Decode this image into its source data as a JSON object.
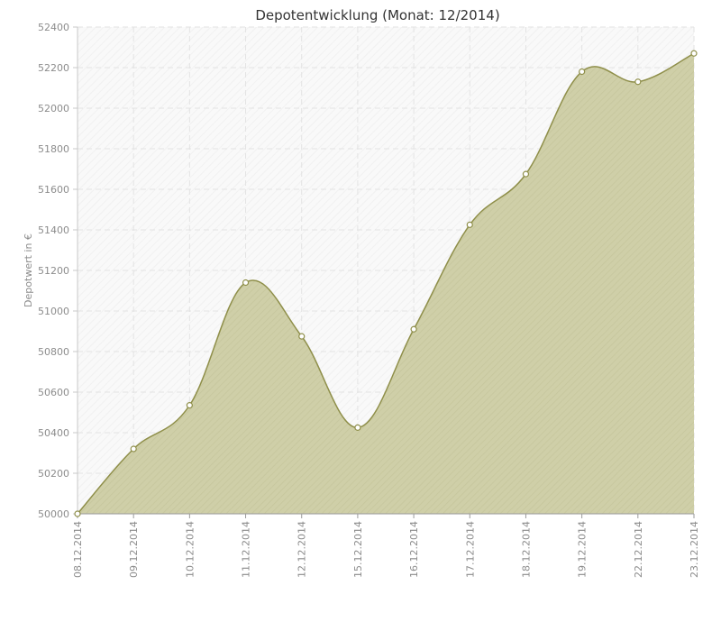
{
  "chart_data": {
    "type": "area",
    "title": "Depotentwicklung (Monat: 12/2014)",
    "xlabel": "",
    "ylabel": "Depotwert in €",
    "categories": [
      "08.12.2014",
      "09.12.2014",
      "10.12.2014",
      "11.12.2014",
      "12.12.2014",
      "15.12.2014",
      "16.12.2014",
      "17.12.2014",
      "18.12.2014",
      "19.12.2014",
      "22.12.2014",
      "23.12.2014"
    ],
    "values": [
      50000,
      50320,
      50535,
      51140,
      50875,
      50425,
      50910,
      51425,
      51675,
      52180,
      52130,
      52270
    ],
    "ylim": [
      50000,
      52400
    ],
    "yticks": [
      50000,
      50200,
      50400,
      50600,
      50800,
      51000,
      51200,
      51400,
      51600,
      51800,
      52000,
      52200,
      52400
    ],
    "grid": true,
    "legend": "none",
    "colors": {
      "area_fill": "#cfcfa8",
      "line": "#8f8f4a",
      "marker_fill": "#ffffff",
      "grid": "#e3e3e3",
      "plot_bg": "#f9f9f9"
    }
  }
}
